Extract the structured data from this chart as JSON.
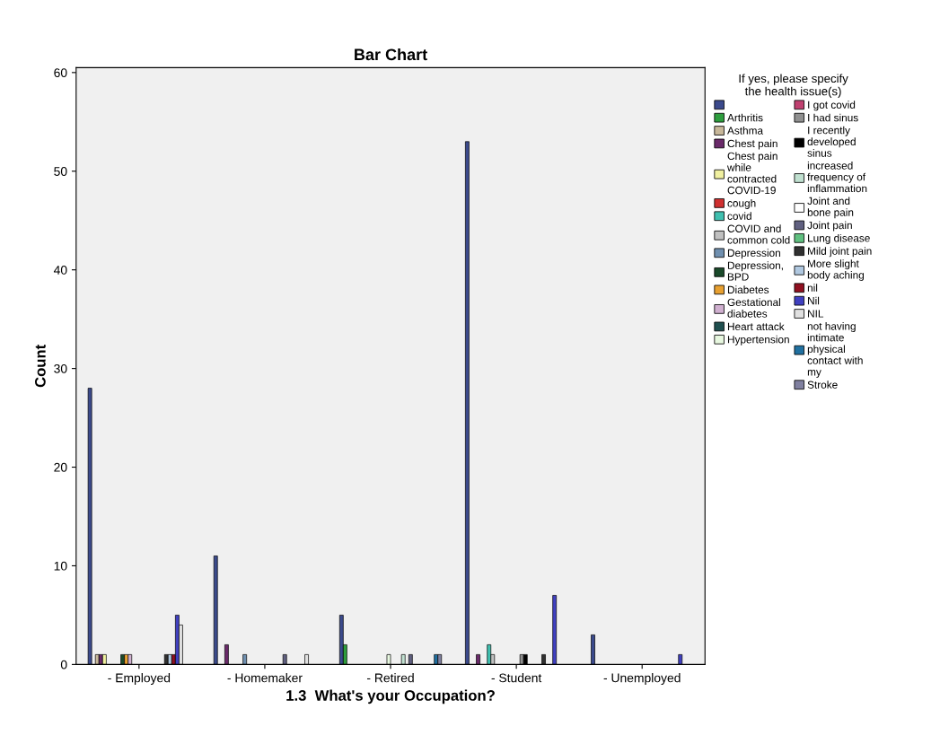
{
  "chart_data": {
    "type": "bar",
    "title": "Bar Chart",
    "xlabel": "1.3  What's your Occupation?",
    "ylabel": "Count",
    "legend_title": "If yes, please specify\nthe health issue(s)",
    "categories": [
      "- Employed",
      "- Homemaker",
      "- Retired",
      "- Student",
      "- Unemployed"
    ],
    "ylim": [
      0,
      60.5
    ],
    "yticks": [
      0,
      10,
      20,
      30,
      40,
      50,
      60
    ],
    "grid": false,
    "legend": "right",
    "series": [
      {
        "color": "#3b4a8c",
        "values": [
          28,
          11,
          5,
          53,
          3
        ]
      },
      {
        "name": "Arthritis",
        "color": "#2e9e3e",
        "values": [
          null,
          null,
          2,
          null,
          null
        ]
      },
      {
        "name": "Asthma",
        "color": "#c8b89a",
        "values": [
          1,
          null,
          null,
          null,
          null
        ]
      },
      {
        "name": "Chest pain",
        "color": "#6a2a6a",
        "values": [
          1,
          2,
          null,
          1,
          null
        ]
      },
      {
        "name": "Chest pain\nwhile\ncontracted\nCOVID-19",
        "color": "#f0f0a0",
        "values": [
          1,
          null,
          null,
          null,
          null
        ]
      },
      {
        "name": "cough",
        "color": "#d03030",
        "values": [
          null,
          null,
          null,
          null,
          null
        ]
      },
      {
        "name": "covid",
        "color": "#40c0b0",
        "values": [
          null,
          null,
          null,
          2,
          null
        ]
      },
      {
        "name": "COVID and\ncommon cold",
        "color": "#c0c0c0",
        "values": [
          null,
          null,
          null,
          1,
          null
        ]
      },
      {
        "name": "Depression",
        "color": "#7090b0",
        "values": [
          null,
          1,
          null,
          null,
          null
        ]
      },
      {
        "name": "Depression,\nBPD",
        "color": "#1a4a2a",
        "values": [
          1,
          null,
          null,
          null,
          null
        ]
      },
      {
        "name": "Diabetes",
        "color": "#e8a030",
        "values": [
          1,
          null,
          null,
          null,
          null
        ]
      },
      {
        "name": "Gestational\ndiabetes",
        "color": "#d0b0d0",
        "values": [
          1,
          null,
          null,
          null,
          null
        ]
      },
      {
        "name": "Heart attack",
        "color": "#205050",
        "values": [
          null,
          null,
          null,
          null,
          null
        ]
      },
      {
        "name": "Hypertension",
        "color": "#e8f8e0",
        "values": [
          null,
          null,
          1,
          null,
          null
        ]
      },
      {
        "name": "I got covid",
        "color": "#c04070",
        "values": [
          null,
          null,
          null,
          null,
          null
        ]
      },
      {
        "name": "I had sinus",
        "color": "#909090",
        "values": [
          null,
          null,
          null,
          1,
          null
        ]
      },
      {
        "name": "I recently\ndeveloped\nsinus",
        "color": "#000000",
        "values": [
          null,
          null,
          null,
          1,
          null
        ]
      },
      {
        "name": "increased\nfrequency of\ninflammation",
        "color": "#c0e0d0",
        "values": [
          null,
          null,
          1,
          null,
          null
        ]
      },
      {
        "name": "Joint and\nbone pain",
        "color": "#ffffff",
        "values": [
          null,
          null,
          null,
          null,
          null
        ]
      },
      {
        "name": "Joint pain",
        "color": "#606080",
        "values": [
          null,
          1,
          1,
          null,
          null
        ]
      },
      {
        "name": "Lung disease",
        "color": "#60c080",
        "values": [
          null,
          null,
          null,
          null,
          null
        ]
      },
      {
        "name": "Mild joint pain",
        "color": "#303030",
        "values": [
          1,
          null,
          null,
          1,
          null
        ]
      },
      {
        "name": "More slight\nbody aching",
        "color": "#b0c8e0",
        "values": [
          1,
          null,
          null,
          null,
          null
        ]
      },
      {
        "name": "nil",
        "color": "#901020",
        "values": [
          1,
          null,
          null,
          null,
          null
        ]
      },
      {
        "name": "Nil",
        "color": "#4040c0",
        "values": [
          5,
          null,
          null,
          7,
          1
        ]
      },
      {
        "name": "NIL",
        "color": "#e0e0e0",
        "values": [
          4,
          1,
          null,
          null,
          null
        ]
      },
      {
        "name": "not having\nintimate\nphysical\ncontact with\nmy",
        "color": "#2070a0",
        "values": [
          null,
          null,
          1,
          null,
          null
        ]
      },
      {
        "name": "Stroke",
        "color": "#8080a0",
        "values": [
          null,
          null,
          1,
          null,
          null
        ]
      }
    ]
  }
}
